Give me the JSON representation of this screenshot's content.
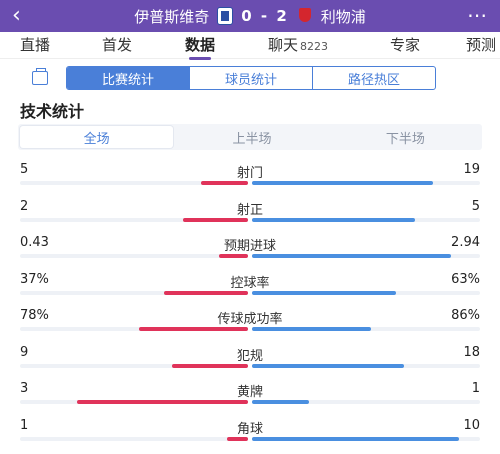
{
  "header": {
    "back_icon": "chevron-left-icon",
    "home_team": "伊普斯维奇",
    "score": "0 - 2",
    "away_team": "利物浦",
    "more_icon": "more-dots-icon"
  },
  "tabs": [
    {
      "label": "直播"
    },
    {
      "label": "首发"
    },
    {
      "label": "数据",
      "active": true
    },
    {
      "label": "聊天",
      "count": "8223"
    },
    {
      "label": "专家"
    },
    {
      "label": "预测"
    }
  ],
  "segments": [
    "比赛统计",
    "球员统计",
    "路径热区"
  ],
  "section_title": "技术统计",
  "periods": [
    "全场",
    "上半场",
    "下半场"
  ],
  "colors": {
    "header": "#6a4db0",
    "accent": "#4a7fd8",
    "home_bar": "#e0335a",
    "away_bar": "#4a8fe0"
  },
  "stats": [
    {
      "label": "射门",
      "home": "5",
      "away": "19",
      "home_frac": 0.208,
      "away_frac": 0.792
    },
    {
      "label": "射正",
      "home": "2",
      "away": "5",
      "home_frac": 0.286,
      "away_frac": 0.714
    },
    {
      "label": "预期进球",
      "home": "0.43",
      "away": "2.94",
      "home_frac": 0.128,
      "away_frac": 0.872
    },
    {
      "label": "控球率",
      "home": "37%",
      "away": "63%",
      "home_frac": 0.37,
      "away_frac": 0.63
    },
    {
      "label": "传球成功率",
      "home": "78%",
      "away": "86%",
      "home_frac": 0.476,
      "away_frac": 0.524
    },
    {
      "label": "犯规",
      "home": "9",
      "away": "18",
      "home_frac": 0.333,
      "away_frac": 0.667
    },
    {
      "label": "黄牌",
      "home": "3",
      "away": "1",
      "home_frac": 0.75,
      "away_frac": 0.25
    },
    {
      "label": "角球",
      "home": "1",
      "away": "10",
      "home_frac": 0.091,
      "away_frac": 0.909
    }
  ]
}
